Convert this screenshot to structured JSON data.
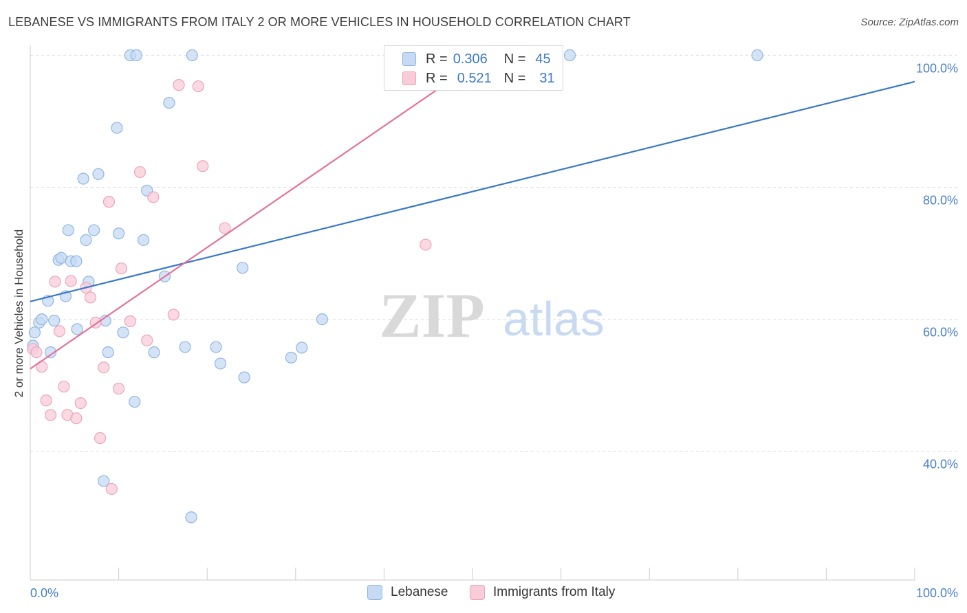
{
  "header": {
    "title": "LEBANESE VS IMMIGRANTS FROM ITALY 2 OR MORE VEHICLES IN HOUSEHOLD CORRELATION CHART",
    "source": "Source: ZipAtlas.com"
  },
  "watermark": {
    "zip": "ZIP",
    "atlas": "atlas"
  },
  "legend": {
    "rows": [
      {
        "r_label": "R =",
        "r_value": "0.306",
        "n_label": "N =",
        "n_value": "45"
      },
      {
        "r_label": "R =",
        "r_value": "0.521",
        "n_label": "N =",
        "n_value": "31"
      }
    ]
  },
  "bottom_legend": {
    "items": [
      {
        "label": "Lebanese"
      },
      {
        "label": "Immigrants from Italy"
      }
    ]
  },
  "colors": {
    "blue_fill": "#c6dbf3",
    "blue_stroke": "#8fb5e3",
    "blue_line": "#3a78c9",
    "pink_fill": "#f8ccd9",
    "pink_stroke": "#eca5bb",
    "pink_line": "#e66f98",
    "grid": "#dcdcdc",
    "tick_text": "#4a7fc8"
  },
  "chart_data": {
    "type": "scatter",
    "title": "LEBANESE VS IMMIGRANTS FROM ITALY 2 OR MORE VEHICLES IN HOUSEHOLD CORRELATION CHART",
    "xlabel": "",
    "ylabel": "2 or more Vehicles in Household",
    "xlim": [
      0,
      100
    ],
    "ylim": [
      20.5,
      101.5
    ],
    "x_tick_labels": [
      {
        "value": 0,
        "label": "0.0%"
      },
      {
        "value": 100,
        "label": "100.0%"
      }
    ],
    "y_tick_labels": [
      {
        "value": 40,
        "label": "40.0%"
      },
      {
        "value": 60,
        "label": "60.0%"
      },
      {
        "value": 80,
        "label": "80.0%"
      },
      {
        "value": 100,
        "label": "100.0%"
      }
    ],
    "y_gridlines": [
      40,
      60,
      80,
      100
    ],
    "grid": true,
    "series": [
      {
        "name": "Lebanese",
        "color": "#8fb5e3",
        "r": 0.306,
        "n": 45,
        "trend": {
          "x": [
            0,
            100
          ],
          "y": [
            62.7,
            96.0
          ]
        },
        "points": [
          [
            0.3,
            56.0
          ],
          [
            0.5,
            58.0
          ],
          [
            1.0,
            59.5
          ],
          [
            1.3,
            60.0
          ],
          [
            2.0,
            62.8
          ],
          [
            2.3,
            55.0
          ],
          [
            2.7,
            59.8
          ],
          [
            3.2,
            69.0
          ],
          [
            3.5,
            69.3
          ],
          [
            4.0,
            63.5
          ],
          [
            4.3,
            73.5
          ],
          [
            4.6,
            68.8
          ],
          [
            5.2,
            68.8
          ],
          [
            5.3,
            58.5
          ],
          [
            6.0,
            81.3
          ],
          [
            6.3,
            72.0
          ],
          [
            6.6,
            65.7
          ],
          [
            7.2,
            73.5
          ],
          [
            7.7,
            82.0
          ],
          [
            8.3,
            35.5
          ],
          [
            8.5,
            59.8
          ],
          [
            8.8,
            55.0
          ],
          [
            9.8,
            89.0
          ],
          [
            10.0,
            73.0
          ],
          [
            10.5,
            58.0
          ],
          [
            11.3,
            100.0
          ],
          [
            11.8,
            47.5
          ],
          [
            12.0,
            100.0
          ],
          [
            12.8,
            72.0
          ],
          [
            13.2,
            79.5
          ],
          [
            14.0,
            55.0
          ],
          [
            15.2,
            66.5
          ],
          [
            15.7,
            92.8
          ],
          [
            17.5,
            55.8
          ],
          [
            18.2,
            30.0
          ],
          [
            18.3,
            100.0
          ],
          [
            21.0,
            55.8
          ],
          [
            21.5,
            53.3
          ],
          [
            24.0,
            67.8
          ],
          [
            24.2,
            51.2
          ],
          [
            29.5,
            54.2
          ],
          [
            30.7,
            55.7
          ],
          [
            33.0,
            60.0
          ],
          [
            61.0,
            100.0
          ],
          [
            82.2,
            100.0
          ]
        ]
      },
      {
        "name": "Immigrants from Italy",
        "color": "#eca5bb",
        "r": 0.521,
        "n": 31,
        "trend": {
          "x": [
            0,
            49.5
          ],
          "y": [
            52.5,
            98.0
          ]
        },
        "points": [
          [
            0.3,
            55.5
          ],
          [
            0.7,
            55.0
          ],
          [
            1.3,
            52.8
          ],
          [
            1.8,
            47.7
          ],
          [
            2.3,
            45.5
          ],
          [
            2.8,
            65.7
          ],
          [
            3.3,
            58.2
          ],
          [
            3.8,
            49.8
          ],
          [
            4.2,
            45.5
          ],
          [
            4.6,
            65.8
          ],
          [
            5.2,
            45.0
          ],
          [
            5.7,
            47.3
          ],
          [
            6.3,
            64.8
          ],
          [
            6.8,
            63.3
          ],
          [
            7.4,
            59.5
          ],
          [
            7.9,
            42.0
          ],
          [
            8.3,
            52.7
          ],
          [
            8.9,
            77.8
          ],
          [
            9.2,
            34.3
          ],
          [
            10.0,
            49.5
          ],
          [
            10.3,
            67.7
          ],
          [
            11.3,
            59.7
          ],
          [
            12.4,
            82.3
          ],
          [
            13.2,
            56.8
          ],
          [
            13.9,
            78.5
          ],
          [
            16.2,
            60.7
          ],
          [
            16.8,
            95.5
          ],
          [
            19.0,
            95.3
          ],
          [
            19.5,
            83.2
          ],
          [
            22.0,
            73.8
          ],
          [
            44.7,
            71.3
          ]
        ]
      }
    ]
  }
}
